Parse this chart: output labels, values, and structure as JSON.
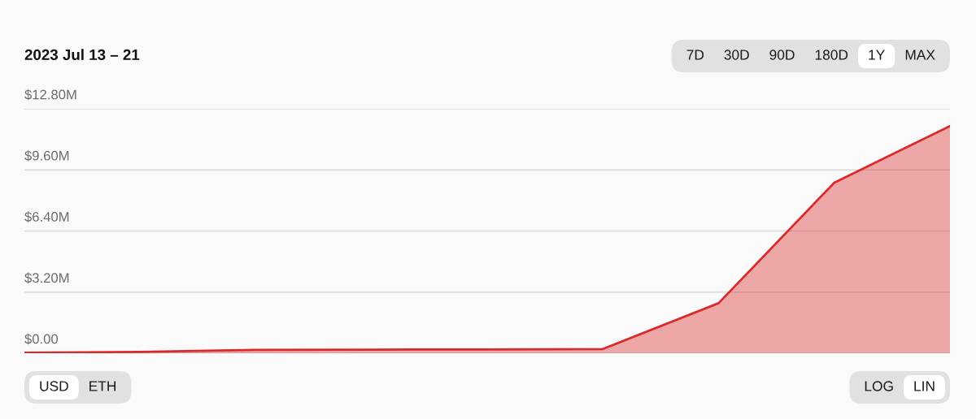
{
  "chart_data": {
    "type": "area",
    "title": "2023 Jul 13 – 21",
    "categories": [
      null,
      null,
      null,
      null,
      null,
      null,
      null,
      null,
      null
    ],
    "series": [
      {
        "color": "#d92b2b",
        "values": [
          0.03,
          0.07,
          0.18,
          0.19,
          0.2,
          0.22,
          2.62,
          8.93,
          11.9
        ]
      }
    ],
    "ylim": [
      0,
      12.8
    ],
    "yticks": [
      {
        "value": 0,
        "label": "$0.00"
      },
      {
        "value": 3.2,
        "label": "$3.20M"
      },
      {
        "value": 6.4,
        "label": "$6.40M"
      },
      {
        "value": 9.6,
        "label": "$9.60M"
      },
      {
        "value": 12.8,
        "label": "$12.80M"
      }
    ],
    "grid": "y",
    "annotations": [
      "7D",
      "30D",
      "90D",
      "180D",
      "1Y",
      "MAX",
      "USD",
      "ETH",
      "LOG",
      "LIN"
    ]
  }
}
